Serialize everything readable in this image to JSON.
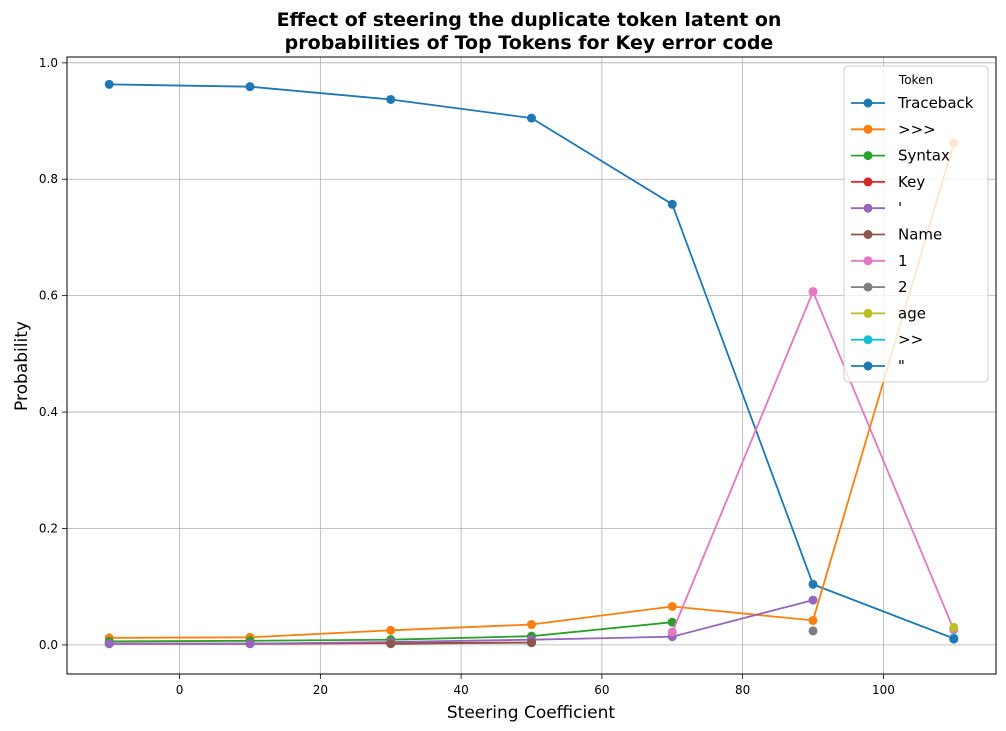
{
  "chart_data": {
    "type": "line",
    "title_lines": [
      "Effect of steering the duplicate token latent on",
      "probabilities of Top Tokens for Key error code"
    ],
    "xlabel": "Steering Coefficient",
    "ylabel": "Probability",
    "xlim": [
      -16,
      116
    ],
    "ylim": [
      -0.05,
      1.01
    ],
    "x_ticks": [
      0,
      20,
      40,
      60,
      80,
      100
    ],
    "y_ticks": [
      0.0,
      0.2,
      0.4,
      0.6,
      0.8,
      1.0
    ],
    "x_tick_labels": [
      "0",
      "20",
      "40",
      "60",
      "80",
      "100"
    ],
    "y_tick_labels": [
      "0.0",
      "0.2",
      "0.4",
      "0.6",
      "0.8",
      "1.0"
    ],
    "grid": true,
    "legend_title": "Token",
    "legend_position": "top-right",
    "series": [
      {
        "name": "Traceback",
        "color": "#1f77b4",
        "x": [
          -10,
          10,
          30,
          50,
          70,
          90,
          110
        ],
        "y": [
          0.963,
          0.959,
          0.937,
          0.905,
          0.757,
          0.104,
          0.011
        ]
      },
      {
        "name": ">>>",
        "color": "#ff7f0e",
        "x": [
          -10,
          10,
          30,
          50,
          70,
          90,
          110
        ],
        "y": [
          0.012,
          0.013,
          0.025,
          0.035,
          0.066,
          0.042,
          0.862
        ]
      },
      {
        "name": "Syntax",
        "color": "#2ca02c",
        "x": [
          -10,
          10,
          30,
          50,
          70
        ],
        "y": [
          0.006,
          0.007,
          0.009,
          0.015,
          0.039
        ]
      },
      {
        "name": "Key",
        "color": "#d62728",
        "x": [
          -10,
          10,
          30,
          50
        ],
        "y": [
          0.002,
          0.002,
          0.003,
          0.004
        ]
      },
      {
        "name": "'",
        "color": "#9467bd",
        "x": [
          -10,
          10,
          30,
          50,
          70,
          90
        ],
        "y": [
          0.002,
          0.002,
          0.005,
          0.009,
          0.014,
          0.077
        ]
      },
      {
        "name": "Name",
        "color": "#8c564b",
        "x": [
          30,
          50
        ],
        "y": [
          0.002,
          0.004
        ]
      },
      {
        "name": "1",
        "color": "#e377c2",
        "x": [
          70,
          90,
          110
        ],
        "y": [
          0.022,
          0.607,
          0.026
        ]
      },
      {
        "name": "2",
        "color": "#7f7f7f",
        "x": [
          90
        ],
        "y": [
          0.024
        ]
      },
      {
        "name": "age",
        "color": "#bcbd22",
        "x": [
          110
        ],
        "y": [
          0.03
        ]
      },
      {
        "name": ">>",
        "color": "#17becf",
        "x": [
          110
        ],
        "y": [
          0.012
        ]
      },
      {
        "name": "\"",
        "color": "#1f77b4",
        "x": [
          110
        ],
        "y": [
          0.01
        ]
      }
    ]
  }
}
